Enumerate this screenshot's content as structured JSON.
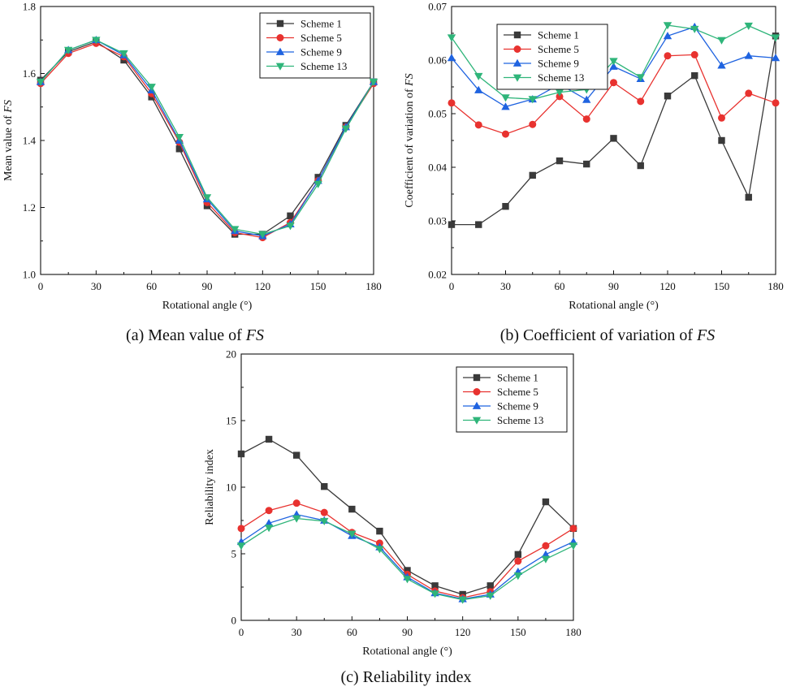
{
  "series_styles": [
    {
      "name": "Scheme 1",
      "color": "#3a3a3a",
      "marker": "square"
    },
    {
      "name": "Scheme 5",
      "color": "#e8322f",
      "marker": "circle"
    },
    {
      "name": "Scheme 9",
      "color": "#1f63e0",
      "marker": "triangle-up"
    },
    {
      "name": "Scheme 13",
      "color": "#2fb57a",
      "marker": "triangle-down"
    }
  ],
  "chart_data": [
    {
      "id": "a",
      "type": "line",
      "caption": "(a) Mean value of ",
      "caption_var": "FS",
      "xlabel": "Rotational angle (°)",
      "ylabel": "Mean value of ",
      "ylabel_var": "FS",
      "x": [
        0,
        15,
        30,
        45,
        60,
        75,
        90,
        105,
        120,
        135,
        150,
        165,
        180
      ],
      "xlim": [
        0,
        180
      ],
      "xticks": [
        0,
        30,
        60,
        90,
        120,
        150,
        180
      ],
      "ylim": [
        1.0,
        1.8
      ],
      "yticks": [
        1.0,
        1.2,
        1.4,
        1.6,
        1.8
      ],
      "ytick_labels": [
        "1.0",
        "1.2",
        "1.4",
        "1.6",
        "1.8"
      ],
      "legend_position": "top-right",
      "series": [
        {
          "name": "Scheme 1",
          "values": [
            1.58,
            1.665,
            1.695,
            1.64,
            1.53,
            1.375,
            1.205,
            1.12,
            1.12,
            1.175,
            1.29,
            1.445,
            1.575
          ]
        },
        {
          "name": "Scheme 5",
          "values": [
            1.57,
            1.66,
            1.69,
            1.65,
            1.54,
            1.395,
            1.215,
            1.125,
            1.11,
            1.155,
            1.28,
            1.44,
            1.57
          ]
        },
        {
          "name": "Scheme 9",
          "values": [
            1.575,
            1.67,
            1.7,
            1.655,
            1.55,
            1.4,
            1.225,
            1.13,
            1.115,
            1.15,
            1.28,
            1.44,
            1.575
          ]
        },
        {
          "name": "Scheme 13",
          "values": [
            1.575,
            1.67,
            1.7,
            1.66,
            1.56,
            1.41,
            1.23,
            1.135,
            1.12,
            1.145,
            1.27,
            1.435,
            1.575
          ]
        }
      ]
    },
    {
      "id": "b",
      "type": "line",
      "caption": "(b) Coefficient of variation of ",
      "caption_var": "FS",
      "xlabel": "Rotational angle (°)",
      "ylabel": "Coefficient of variation of ",
      "ylabel_var": "FS",
      "x": [
        0,
        15,
        30,
        45,
        60,
        75,
        90,
        105,
        120,
        135,
        150,
        165,
        180
      ],
      "xlim": [
        0,
        180
      ],
      "xticks": [
        0,
        30,
        60,
        90,
        120,
        150,
        180
      ],
      "ylim": [
        0.02,
        0.07
      ],
      "yticks": [
        0.02,
        0.03,
        0.04,
        0.05,
        0.06,
        0.07
      ],
      "ytick_labels": [
        "0.02",
        "0.03",
        "0.04",
        "0.05",
        "0.06",
        "0.07"
      ],
      "legend_position": "top-left",
      "series": [
        {
          "name": "Scheme 1",
          "values": [
            0.0293,
            0.0293,
            0.0327,
            0.0385,
            0.0412,
            0.0406,
            0.0454,
            0.0403,
            0.0533,
            0.0571,
            0.045,
            0.0344,
            0.0645
          ]
        },
        {
          "name": "Scheme 5",
          "values": [
            0.052,
            0.0479,
            0.0462,
            0.048,
            0.0532,
            0.049,
            0.0558,
            0.0523,
            0.0608,
            0.061,
            0.0492,
            0.0538,
            0.052
          ]
        },
        {
          "name": "Scheme 9",
          "values": [
            0.0604,
            0.0544,
            0.0513,
            0.0527,
            0.0555,
            0.0526,
            0.0588,
            0.0565,
            0.0645,
            0.0662,
            0.059,
            0.0608,
            0.0604
          ]
        },
        {
          "name": "Scheme 13",
          "values": [
            0.0642,
            0.057,
            0.053,
            0.0527,
            0.054,
            0.0545,
            0.0598,
            0.0568,
            0.0665,
            0.0658,
            0.0637,
            0.0664,
            0.0642
          ]
        }
      ]
    },
    {
      "id": "c",
      "type": "line",
      "caption": "(c) Reliability index",
      "caption_var": "",
      "xlabel": "Rotational angle (°)",
      "ylabel": "Reliability index",
      "ylabel_var": "",
      "x": [
        0,
        15,
        30,
        45,
        60,
        75,
        90,
        105,
        120,
        135,
        150,
        165,
        180
      ],
      "xlim": [
        0,
        180
      ],
      "xticks": [
        0,
        30,
        60,
        90,
        120,
        150,
        180
      ],
      "ylim": [
        0,
        20
      ],
      "yticks": [
        0,
        5,
        10,
        15,
        20
      ],
      "ytick_labels": [
        "0",
        "5",
        "10",
        "15",
        "20"
      ],
      "legend_position": "top-right",
      "series": [
        {
          "name": "Scheme 1",
          "values": [
            12.5,
            13.6,
            12.4,
            10.05,
            8.35,
            6.7,
            3.75,
            2.6,
            1.95,
            2.6,
            4.95,
            8.9,
            6.9
          ]
        },
        {
          "name": "Scheme 5",
          "values": [
            6.9,
            8.25,
            8.8,
            8.1,
            6.6,
            5.8,
            3.45,
            2.2,
            1.7,
            2.15,
            4.45,
            5.6,
            6.9
          ]
        },
        {
          "name": "Scheme 9",
          "values": [
            5.9,
            7.3,
            7.95,
            7.5,
            6.35,
            5.5,
            3.25,
            2.05,
            1.6,
            1.95,
            3.65,
            4.95,
            5.9
          ]
        },
        {
          "name": "Scheme 13",
          "values": [
            5.6,
            6.95,
            7.65,
            7.45,
            6.5,
            5.35,
            3.1,
            2.0,
            1.55,
            1.85,
            3.35,
            4.6,
            5.6
          ]
        }
      ]
    }
  ]
}
